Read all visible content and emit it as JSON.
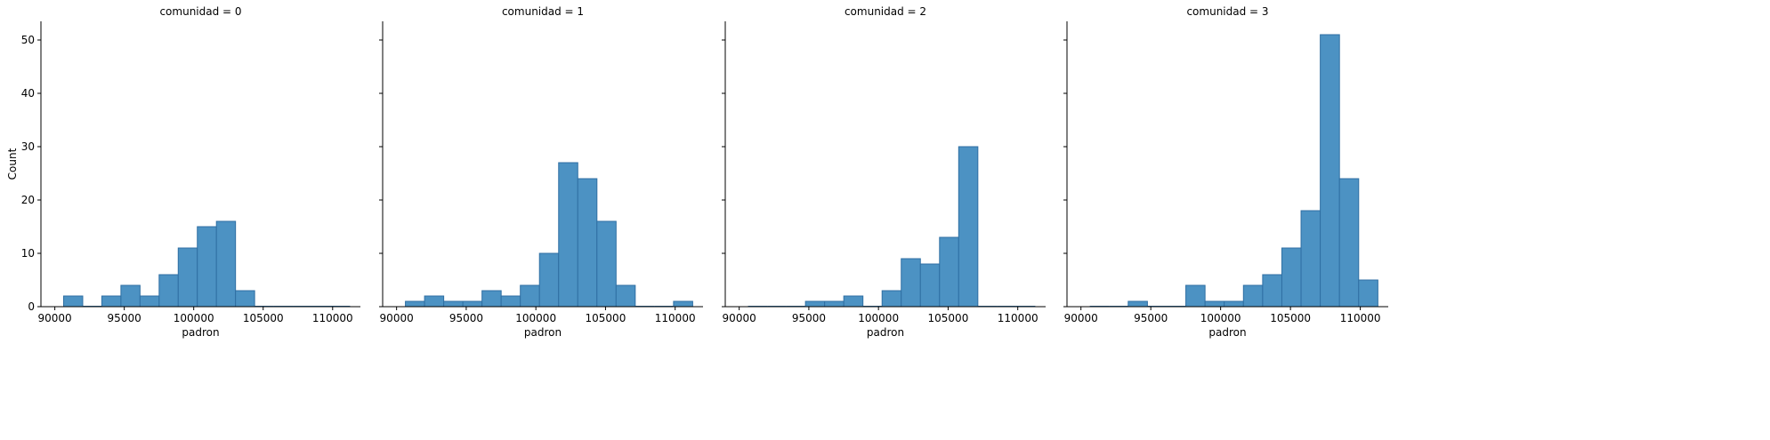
{
  "chart_data": {
    "type": "bar",
    "layout": "facet-grid-1x4",
    "shared_y": true,
    "grid": false,
    "ylabel": "Count",
    "xlabel": "padron",
    "xlim": [
      89000,
      112000
    ],
    "ylim": [
      0,
      53.5
    ],
    "xticks": [
      90000,
      95000,
      100000,
      105000,
      110000
    ],
    "yticks": [
      0,
      10,
      20,
      30,
      40,
      50
    ],
    "bin_edges": [
      90634,
      92009,
      93384,
      94759,
      96134,
      97509,
      98884,
      100259,
      101634,
      103009,
      104384,
      105759,
      107134,
      108509,
      109884,
      111259
    ],
    "color": "#4c92c3",
    "edge_color": "#2f6fa3",
    "facets": [
      {
        "title": "comunidad = 0",
        "counts": [
          2,
          0,
          2,
          4,
          2,
          6,
          11,
          15,
          16,
          3,
          0,
          0,
          0,
          0,
          0
        ]
      },
      {
        "title": "comunidad = 1",
        "counts": [
          1,
          2,
          1,
          1,
          3,
          2,
          4,
          10,
          27,
          24,
          16,
          4,
          0,
          0,
          1
        ]
      },
      {
        "title": "comunidad = 2",
        "counts": [
          0,
          0,
          0,
          1,
          1,
          2,
          0,
          3,
          9,
          8,
          13,
          30,
          0,
          0,
          0
        ]
      },
      {
        "title": "comunidad = 3",
        "counts": [
          0,
          0,
          1,
          0,
          0,
          4,
          1,
          1,
          4,
          6,
          11,
          18,
          51,
          24,
          5
        ]
      }
    ]
  }
}
